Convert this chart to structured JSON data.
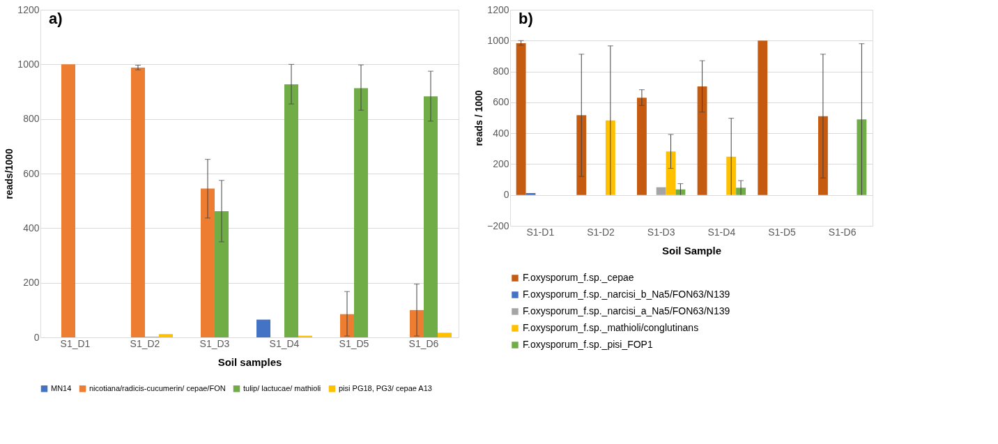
{
  "chart_data": [
    {
      "type": "bar",
      "title": "a)",
      "xlabel": "Soil samples",
      "ylabel": "reads/1000",
      "categories": [
        "S1_D1",
        "S1_D2",
        "S1_D3",
        "S1_D4",
        "S1_D5",
        "S1_D6"
      ],
      "series": [
        {
          "name": "MN14",
          "color": "#4472c4",
          "values": [
            0,
            0,
            0,
            65,
            0,
            0
          ]
        },
        {
          "name": "nicotiana/radicis-cucumerin/ cepae/FON",
          "color": "#ed7d31",
          "values": [
            1000,
            988,
            545,
            0,
            85,
            100
          ],
          "errors": [
            null,
            [
              980,
              997
            ],
            [
              437,
              652
            ],
            null,
            [
              5,
              168
            ],
            [
              5,
              195
            ]
          ]
        },
        {
          "name": "tulip/ lactucae/ mathioli",
          "color": "#70ad47",
          "values": [
            0,
            2,
            462,
            927,
            913,
            883
          ],
          "errors": [
            null,
            null,
            [
              350,
              575
            ],
            [
              855,
              1000
            ],
            [
              832,
              998
            ],
            [
              792,
              975
            ]
          ]
        },
        {
          "name": "pisi PG18, PG3/ cepae A13",
          "color": "#ffc000",
          "values": [
            0,
            12,
            0,
            6,
            0,
            17
          ]
        }
      ],
      "ylim": [
        0,
        1200
      ],
      "yticks": [
        0,
        200,
        400,
        600,
        800,
        1000,
        1200
      ],
      "grid": "y",
      "legend": "bottom"
    },
    {
      "type": "bar",
      "title": "b)",
      "xlabel": "Soil Sample",
      "ylabel": "reads / 1000",
      "categories": [
        "S1-D1",
        "S1-D2",
        "S1-D3",
        "S1-D4",
        "S1-D5",
        "S1-D6"
      ],
      "series": [
        {
          "name": "F.oxysporum_f.sp._cepae",
          "color": "#c55a11",
          "values": [
            983,
            517,
            630,
            703,
            1000,
            510
          ],
          "errors": [
            [
              970,
              1000
            ],
            [
              120,
              912
            ],
            [
              580,
              682
            ],
            [
              537,
              870
            ],
            null,
            [
              110,
              912
            ]
          ]
        },
        {
          "name": "F.oxysporum_f.sp._narcisi_b_Na5/FON63/N139",
          "color": "#4472c4",
          "values": [
            12,
            0,
            0,
            0,
            0,
            0
          ]
        },
        {
          "name": "F.oxysporum_f.sp._narcisi_a_Na5/FON63/N139",
          "color": "#a5a5a5",
          "values": [
            0,
            0,
            50,
            0,
            0,
            0
          ]
        },
        {
          "name": "F.oxysporum_f.sp._mathioli/conglutinans",
          "color": "#ffc000",
          "values": [
            0,
            483,
            282,
            248,
            0,
            0
          ],
          "errors": [
            null,
            [
              0,
              966
            ],
            [
              172,
              392
            ],
            [
              0,
              497
            ],
            null,
            null
          ]
        },
        {
          "name": "F.oxysporum_f.sp._pisi_FOP1",
          "color": "#70ad47",
          "values": [
            0,
            0,
            36,
            47,
            0,
            490
          ],
          "errors": [
            null,
            null,
            [
              0,
              73
            ],
            [
              0,
              93
            ],
            null,
            [
              0,
              980
            ]
          ]
        }
      ],
      "ylim": [
        -200,
        1200
      ],
      "yticks": [
        -200,
        0,
        200,
        400,
        600,
        800,
        1000,
        1200
      ],
      "grid": "y",
      "legend": "bottom"
    }
  ]
}
